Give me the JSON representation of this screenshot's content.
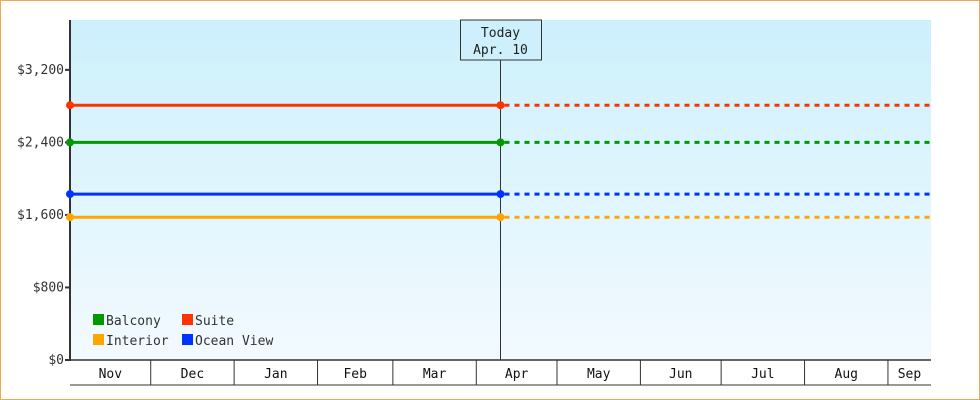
{
  "chart_data": {
    "type": "line",
    "title": "",
    "xlabel": "",
    "ylabel": "",
    "x_range": [
      "Nov 1",
      "Sep 16"
    ],
    "ylim": [
      0,
      3750
    ],
    "y_ticks": [
      0,
      800,
      1600,
      2400,
      3200
    ],
    "y_tick_labels": [
      "$0",
      "$800",
      "$1,600",
      "$2,400",
      "$3,200"
    ],
    "x_tick_labels": [
      "Nov",
      "Dec",
      "Jan",
      "Feb",
      "Mar",
      "Apr",
      "May",
      "Jun",
      "Jul",
      "Aug",
      "Sep"
    ],
    "month_days": [
      30,
      31,
      31,
      28,
      31,
      30,
      31,
      30,
      31,
      31,
      16
    ],
    "grid": false,
    "background": "light blue vertical gradient",
    "legend_placement": "bottom-left",
    "today_marker": {
      "label": "Today",
      "date_label": "Apr. 10",
      "date": "Apr 10"
    },
    "series": [
      {
        "name": "Balcony",
        "color": "#009900",
        "points": [
          {
            "x": "Nov 1",
            "y": 2400
          },
          {
            "x": "Apr 10",
            "y": 2400
          }
        ],
        "projected_to": "Sep 16",
        "projection_style": "dotted"
      },
      {
        "name": "Suite",
        "color": "#ff3300",
        "points": [
          {
            "x": "Nov 1",
            "y": 2810
          },
          {
            "x": "Apr 10",
            "y": 2810
          }
        ],
        "projected_to": "Sep 16",
        "projection_style": "dotted"
      },
      {
        "name": "Interior",
        "color": "#ffa500",
        "points": [
          {
            "x": "Nov 1",
            "y": 1575
          },
          {
            "x": "Apr 10",
            "y": 1575
          }
        ],
        "projected_to": "Sep 16",
        "projection_style": "dotted"
      },
      {
        "name": "Ocean View",
        "color": "#0033ff",
        "points": [
          {
            "x": "Nov 1",
            "y": 1830
          },
          {
            "x": "Apr 10",
            "y": 1830
          }
        ],
        "projected_to": "Sep 16",
        "projection_style": "dotted"
      }
    ]
  }
}
